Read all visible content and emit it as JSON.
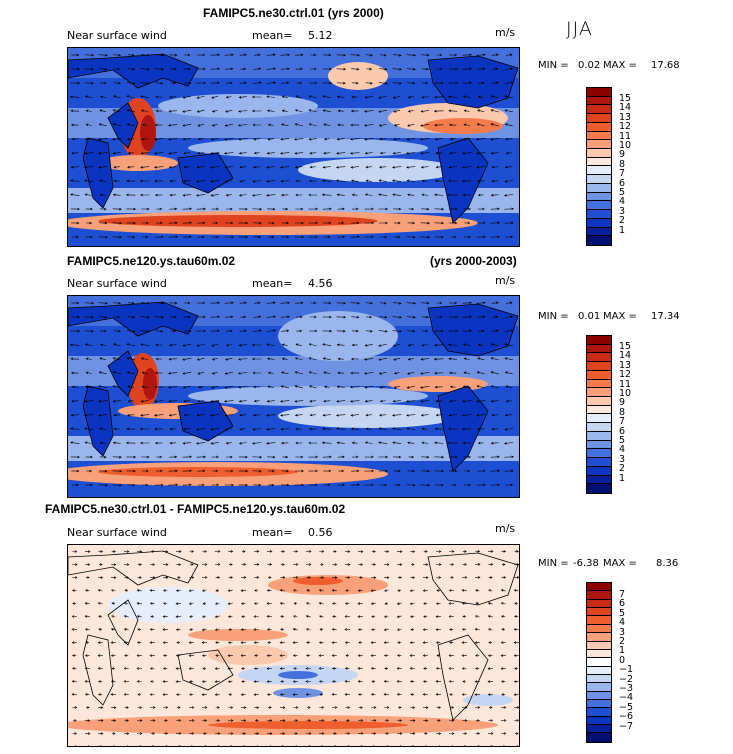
{
  "season": "JJA",
  "panels": [
    {
      "title": "FAMIPC5.ne30.ctrl.01 (yrs 2000)",
      "title_right": "",
      "field": "Near surface wind",
      "mean_label": "mean=",
      "mean": "5.12",
      "units": "m/s",
      "min_label": "MIN =",
      "min": "0.02",
      "max_label": "MAX =",
      "max": "17.68",
      "colorbar_labels": [
        "15",
        "14",
        "13",
        "12",
        "11",
        "10",
        "9",
        "8",
        "7",
        "6",
        "5",
        "4",
        "3",
        "2",
        "1"
      ]
    },
    {
      "title": "FAMIPC5.ne120.ys.tau60m.02",
      "title_right": "(yrs 2000-2003)",
      "field": "Near surface wind",
      "mean_label": "mean=",
      "mean": "4.56",
      "units": "m/s",
      "min_label": "MIN =",
      "min": "0.01",
      "max_label": "MAX =",
      "max": "17.34",
      "colorbar_labels": [
        "15",
        "14",
        "13",
        "12",
        "11",
        "10",
        "9",
        "8",
        "7",
        "6",
        "5",
        "4",
        "3",
        "2",
        "1"
      ]
    },
    {
      "title": "FAMIPC5.ne30.ctrl.01 - FAMIPC5.ne120.ys.tau60m.02",
      "title_right": "",
      "field": "Near surface wind",
      "mean_label": "mean=",
      "mean": "0.56",
      "units": "m/s",
      "min_label": "MIN =",
      "min": "-6.38",
      "max_label": "MAX =",
      "max": "8.36",
      "colorbar_labels": [
        "7",
        "6",
        "5",
        "4",
        "3",
        "2",
        "1",
        "0",
        "−1",
        "−2",
        "−3",
        "−4",
        "−5",
        "−6",
        "−7"
      ]
    }
  ],
  "colors": {
    "speed_scale": [
      "#8b0000",
      "#b0150f",
      "#cc2a16",
      "#e04320",
      "#ee5e2e",
      "#f47b4c",
      "#f7a07a",
      "#fbc9ad",
      "#fde7da",
      "#e5eefa",
      "#c5d6f3",
      "#9bb6ec",
      "#6f92e3",
      "#4470dc",
      "#1e4fd3",
      "#0b34c0",
      "#051f9a",
      "#000e6e"
    ],
    "diff_scale": [
      "#8b0000",
      "#b0150f",
      "#cc2a16",
      "#e04320",
      "#ee5e2e",
      "#f47b4c",
      "#f7a07a",
      "#fbc9ad",
      "#fde7da",
      "#ffffff",
      "#e5eefa",
      "#c5d6f3",
      "#9bb6ec",
      "#6f92e3",
      "#4470dc",
      "#1e4fd3",
      "#0b34c0",
      "#051f9a",
      "#000e6e"
    ]
  }
}
